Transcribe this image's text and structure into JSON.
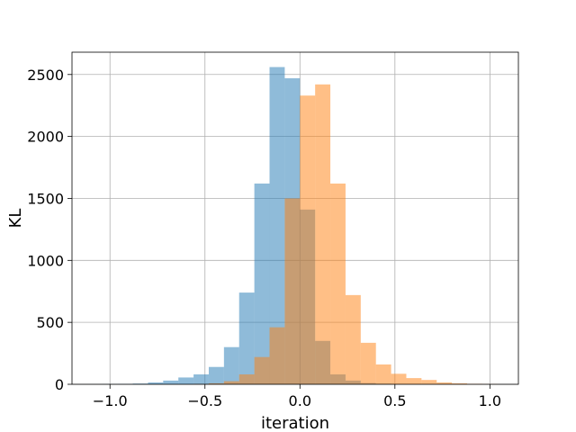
{
  "chart_data": {
    "type": "bar",
    "title": "",
    "xlabel": "iteration",
    "ylabel": "KL",
    "xlim": [
      -1.2,
      1.15
    ],
    "ylim": [
      0,
      2680
    ],
    "xticks": [
      -1.0,
      -0.5,
      0.0,
      0.5,
      1.0
    ],
    "xtick_labels": [
      "−1.0",
      "−0.5",
      "0.0",
      "0.5",
      "1.0"
    ],
    "yticks": [
      0,
      500,
      1000,
      1500,
      2000,
      2500
    ],
    "ytick_labels": [
      "0",
      "500",
      "1000",
      "1500",
      "2000",
      "2500"
    ],
    "grid": true,
    "legend": "none",
    "bin_width": 0.08,
    "series": [
      {
        "color": "#1f77b4",
        "opacity": 0.5,
        "bin_starts": [
          -1.12,
          -1.04,
          -0.96,
          -0.88,
          -0.8,
          -0.72,
          -0.64,
          -0.56,
          -0.48,
          -0.4,
          -0.32,
          -0.24,
          -0.16,
          -0.08,
          0.0,
          0.08,
          0.16,
          0.24,
          0.32,
          0.4,
          0.48,
          0.56
        ],
        "values": [
          1,
          2,
          3,
          6,
          15,
          30,
          55,
          80,
          140,
          300,
          740,
          1620,
          2560,
          2470,
          1410,
          350,
          80,
          30,
          10,
          5,
          2,
          1
        ]
      },
      {
        "color": "#ff7f0e",
        "opacity": 0.5,
        "bin_starts": [
          -0.56,
          -0.48,
          -0.4,
          -0.32,
          -0.24,
          -0.16,
          -0.08,
          0.0,
          0.08,
          0.16,
          0.24,
          0.32,
          0.4,
          0.48,
          0.56,
          0.64,
          0.72,
          0.8,
          0.88,
          0.96
        ],
        "values": [
          3,
          8,
          25,
          80,
          220,
          460,
          1500,
          2330,
          2420,
          1620,
          720,
          335,
          160,
          85,
          50,
          35,
          15,
          8,
          4,
          2
        ]
      }
    ]
  }
}
